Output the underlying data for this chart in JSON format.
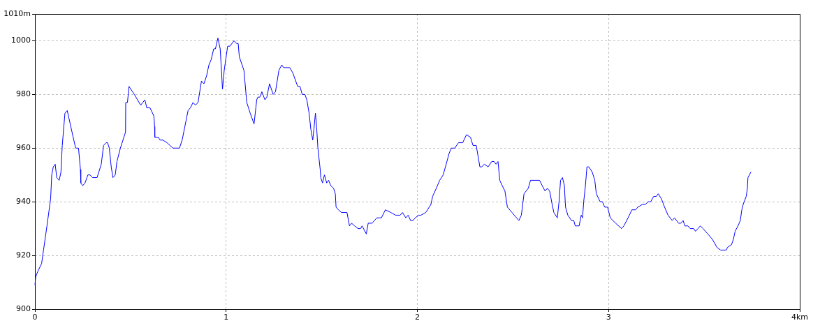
{
  "chart_data": {
    "type": "line",
    "x": [
      0,
      0.004,
      0.015,
      0.035,
      0.045,
      0.063,
      0.082,
      0.088,
      0.096,
      0.106,
      0.114,
      0.127,
      0.136,
      0.143,
      0.157,
      0.169,
      0.197,
      0.213,
      0.228,
      0.238,
      0.24,
      0.25,
      0.262,
      0.277,
      0.289,
      0.301,
      0.325,
      0.347,
      0.359,
      0.372,
      0.38,
      0.389,
      0.399,
      0.408,
      0.42,
      0.429,
      0.447,
      0.465,
      0.474,
      0.475,
      0.484,
      0.492,
      0.52,
      0.553,
      0.575,
      0.585,
      0.602,
      0.622,
      0.626,
      0.627,
      0.646,
      0.654,
      0.669,
      0.691,
      0.721,
      0.756,
      0.77,
      0.801,
      0.813,
      0.827,
      0.84,
      0.853,
      0.871,
      0.884,
      0.898,
      0.91,
      0.922,
      0.935,
      0.944,
      0.957,
      0.969,
      0.981,
      0.99,
      1.008,
      1.02,
      1.041,
      1.054,
      1.063,
      1.069,
      1.093,
      1.108,
      1.126,
      1.146,
      1.16,
      1.166,
      1.176,
      1.187,
      1.203,
      1.213,
      1.227,
      1.246,
      1.258,
      1.276,
      1.291,
      1.301,
      1.333,
      1.349,
      1.374,
      1.386,
      1.398,
      1.412,
      1.422,
      1.434,
      1.443,
      1.453,
      1.459,
      1.467,
      1.473,
      1.48,
      1.492,
      1.495,
      1.504,
      1.514,
      1.526,
      1.536,
      1.547,
      1.562,
      1.571,
      1.575,
      1.587,
      1.603,
      1.632,
      1.645,
      1.656,
      1.672,
      1.69,
      1.703,
      1.711,
      1.733,
      1.743,
      1.763,
      1.788,
      1.812,
      1.833,
      1.861,
      1.886,
      1.91,
      1.922,
      1.94,
      1.952,
      1.965,
      1.977,
      1.989,
      2.007,
      2.019,
      2.044,
      2.071,
      2.08,
      2.099,
      2.117,
      2.135,
      2.147,
      2.166,
      2.178,
      2.196,
      2.215,
      2.237,
      2.257,
      2.278,
      2.291,
      2.308,
      2.327,
      2.336,
      2.351,
      2.37,
      2.389,
      2.401,
      2.412,
      2.422,
      2.431,
      2.444,
      2.458,
      2.471,
      2.495,
      2.531,
      2.544,
      2.558,
      2.58,
      2.592,
      2.639,
      2.653,
      2.668,
      2.68,
      2.692,
      2.705,
      2.714,
      2.732,
      2.741,
      2.749,
      2.759,
      2.769,
      2.775,
      2.787,
      2.806,
      2.818,
      2.826,
      2.846,
      2.857,
      2.864,
      2.87,
      2.879,
      2.887,
      2.897,
      2.915,
      2.928,
      2.936,
      2.956,
      2.968,
      2.98,
      2.995,
      3.009,
      3.037,
      3.068,
      3.08,
      3.102,
      3.122,
      3.141,
      3.153,
      3.177,
      3.192,
      3.208,
      3.22,
      3.236,
      3.25,
      3.26,
      3.277,
      3.293,
      3.311,
      3.333,
      3.345,
      3.366,
      3.378,
      3.39,
      3.399,
      3.415,
      3.427,
      3.445,
      3.455,
      3.48,
      3.494,
      3.519,
      3.543,
      3.567,
      3.586,
      3.616,
      3.622,
      3.643,
      3.653,
      3.662,
      3.677,
      3.689,
      3.697,
      3.704,
      3.72,
      3.726,
      3.729,
      3.744
    ],
    "values": [
      909,
      912,
      914,
      917,
      922,
      931,
      941,
      950,
      953,
      954,
      949,
      948,
      951,
      961,
      973,
      974,
      965,
      960,
      960,
      952,
      947,
      946,
      947,
      950,
      950,
      949,
      949,
      954,
      961,
      962,
      962,
      960,
      953,
      949,
      950,
      955,
      960,
      964,
      966,
      977,
      977,
      983,
      980,
      976,
      978,
      975,
      975,
      972,
      968,
      964,
      964,
      963,
      963,
      962,
      960,
      960,
      963,
      974,
      975,
      977,
      976,
      977,
      985,
      984,
      987,
      991,
      993,
      997,
      997,
      1001,
      997,
      982,
      989,
      998,
      998,
      1000,
      999,
      999,
      994,
      989,
      977,
      973,
      969,
      978,
      979,
      979,
      981,
      978,
      979,
      984,
      980,
      981,
      989,
      991,
      990,
      990,
      988,
      983,
      983,
      980,
      980,
      978,
      973,
      967,
      963,
      967,
      973,
      968,
      960,
      952,
      949,
      947,
      950,
      947,
      948,
      946,
      945,
      943,
      938,
      937,
      936,
      936,
      931,
      932,
      931,
      930,
      930,
      931,
      928,
      932,
      932,
      934,
      934,
      937,
      936,
      935,
      935,
      936,
      934,
      935,
      933,
      933,
      934,
      935,
      935,
      936,
      939,
      942,
      945,
      948,
      950,
      953,
      958,
      960,
      960,
      962,
      962,
      965,
      964,
      961,
      961,
      953,
      953,
      954,
      953,
      955,
      955,
      954,
      955,
      948,
      946,
      944,
      938,
      936,
      933,
      935,
      943,
      945,
      948,
      948,
      946,
      944,
      945,
      944,
      939,
      936,
      934,
      940,
      948,
      949,
      946,
      938,
      935,
      933,
      933,
      931,
      931,
      935,
      934,
      940,
      946,
      953,
      953,
      951,
      948,
      943,
      940,
      940,
      938,
      938,
      934,
      932,
      930,
      931,
      934,
      937,
      937,
      938,
      939,
      939,
      940,
      940,
      942,
      942,
      943,
      941,
      938,
      935,
      933,
      934,
      932,
      932,
      933,
      931,
      931,
      930,
      930,
      929,
      931,
      930,
      928,
      926,
      923,
      922,
      922,
      923,
      924,
      926,
      929,
      931,
      933,
      937,
      939,
      942,
      945,
      949,
      951
    ],
    "color": "#0000ff",
    "xlim": [
      0,
      4
    ],
    "xticks": [
      0,
      1,
      2,
      3,
      {
        "value": 4,
        "label": "4km"
      }
    ],
    "ylim": [
      900,
      1010
    ],
    "yticks": [
      900,
      920,
      940,
      960,
      980,
      1000,
      {
        "value": 1010,
        "label": "1010m"
      }
    ],
    "grid": true,
    "legend": false,
    "marker": "none",
    "line_style": "solid"
  }
}
